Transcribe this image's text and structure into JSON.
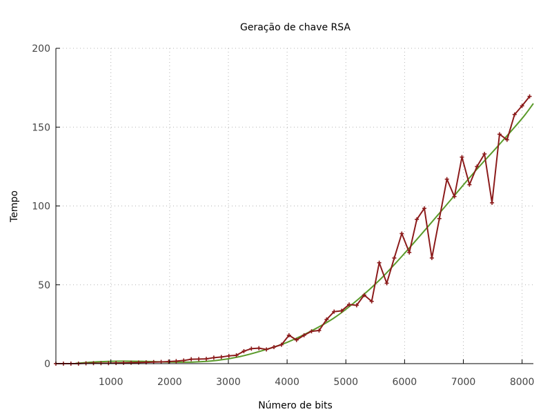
{
  "chart_data": {
    "type": "line",
    "title": "Geração de chave RSA",
    "xlabel": "Número de bits",
    "ylabel": "Tempo",
    "xlim": [
      64,
      8192
    ],
    "ylim": [
      0,
      200
    ],
    "xticks": [
      1000,
      2000,
      3000,
      4000,
      5000,
      6000,
      7000,
      8000
    ],
    "yticks": [
      0,
      50,
      100,
      150,
      200
    ],
    "grid": true,
    "legend": "none",
    "colors": {
      "measured": "#8b1a1a",
      "fit": "#5a9a2a"
    },
    "series": [
      {
        "style": "line-points",
        "x": [
          64,
          192,
          320,
          448,
          576,
          704,
          832,
          960,
          1088,
          1216,
          1344,
          1472,
          1600,
          1728,
          1856,
          1984,
          2112,
          2240,
          2368,
          2496,
          2624,
          2752,
          2880,
          3008,
          3136,
          3264,
          3392,
          3520,
          3648,
          3776,
          3904,
          4032,
          4160,
          4288,
          4416,
          4544,
          4672,
          4800,
          4928,
          5056,
          5184,
          5312,
          5440,
          5568,
          5696,
          5824,
          5952,
          6080,
          6208,
          6336,
          6464,
          6592,
          6720,
          6848,
          6976,
          7104,
          7232,
          7360,
          7488,
          7616,
          7744,
          7872,
          8000,
          8128
        ],
        "y": [
          0,
          0,
          0,
          0,
          0.2,
          0.3,
          0.3,
          0.3,
          0.4,
          0.5,
          0.6,
          0.7,
          0.8,
          1,
          1.1,
          1.3,
          1.6,
          2,
          2.8,
          2.9,
          3,
          3.8,
          4.2,
          4.9,
          5.3,
          7.9,
          9.5,
          9.8,
          9,
          10.5,
          12,
          18,
          15,
          18,
          20.5,
          21,
          28,
          33,
          33.5,
          37.5,
          37,
          43.5,
          39.5,
          64,
          51,
          67,
          82.5,
          70.5,
          91.5,
          98.5,
          67,
          92,
          117,
          106,
          131,
          113.5,
          125,
          133,
          102,
          145.5,
          142,
          158,
          163.5,
          169.5
        ]
      },
      {
        "style": "smooth-line",
        "x": [
          400,
          800,
          1200,
          1600,
          2000,
          2400,
          2800,
          3200,
          3600,
          4000,
          4400,
          4800,
          5200,
          5600,
          6000,
          6400,
          6800,
          7200,
          7600,
          8000,
          8192
        ],
        "y": [
          0.2,
          1.2,
          1.6,
          1.4,
          1.0,
          1.0,
          2.0,
          4.5,
          8.5,
          13.5,
          20.5,
          29,
          40.5,
          54,
          70,
          87,
          104.5,
          122,
          138.5,
          155.5,
          165
        ]
      }
    ]
  }
}
